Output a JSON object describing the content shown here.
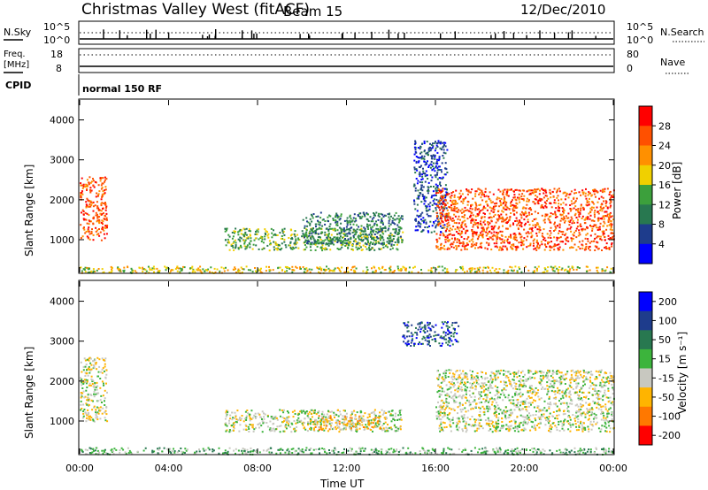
{
  "header": {
    "radar": "Christmas Valley West (fitACF)",
    "beam": "Beam 15",
    "date": "12/Dec/2010"
  },
  "status_panels": {
    "nsky_label": "N.Sky",
    "nsearch_label": "N.Search",
    "sky_ticks": [
      "10^5",
      "10^0"
    ],
    "freq_label": "Freq.",
    "freq_unit": "[MHz]",
    "freq_ticks": [
      "18",
      "8"
    ],
    "nave_label": "Nave",
    "nave_ticks": [
      "80",
      "0"
    ],
    "cpid_label": "CPID",
    "cpid_value": "normal 150 RF"
  },
  "colors": {
    "power_scale": [
      "#0000ff",
      "#1e3c8c",
      "#287850",
      "#3ca03c",
      "#f0d000",
      "#ff9000",
      "#ff5000",
      "#ff0000"
    ],
    "velocity_scale": [
      "#0000ff",
      "#1e3c8c",
      "#287850",
      "#3cb43c",
      "#c8c8c0",
      "#ffb400",
      "#ff7800",
      "#ff0000"
    ]
  },
  "chart_data": [
    {
      "type": "heatmap",
      "panel": "power",
      "ylabel": "Slant Range [km]",
      "y_ticks": [
        "1000",
        "2000",
        "3000",
        "4000"
      ],
      "ylim": [
        180,
        4500
      ],
      "colorbar_label": "Power [dB]",
      "colorbar_ticks": [
        "4",
        "8",
        "12",
        "16",
        "20",
        "24",
        "28"
      ],
      "scatter_regions": [
        {
          "t0": 0.0,
          "t1": 1.2,
          "r0": 1000,
          "r1": 2600,
          "level": 6
        },
        {
          "t0": 6.5,
          "t1": 14.5,
          "r0": 750,
          "r1": 1300,
          "level": 3
        },
        {
          "t0": 10.0,
          "t1": 14.5,
          "r0": 900,
          "r1": 1700,
          "level": 2
        },
        {
          "t0": 15.0,
          "t1": 16.5,
          "r0": 1200,
          "r1": 3500,
          "level": 1
        },
        {
          "t0": 16.0,
          "t1": 24.0,
          "r0": 750,
          "r1": 2300,
          "level": 6
        },
        {
          "t0": 0.0,
          "t1": 24.0,
          "r0": 180,
          "r1": 350,
          "level": 4
        }
      ]
    },
    {
      "type": "heatmap",
      "panel": "velocity",
      "ylabel": "Slant Range [km]",
      "y_ticks": [
        "1000",
        "2000",
        "3000",
        "4000"
      ],
      "ylim": [
        180,
        4500
      ],
      "colorbar_label": "Velocity [m s⁻¹]",
      "colorbar_ticks": [
        "200",
        "100",
        "50",
        "15",
        "-15",
        "-50",
        "-100",
        "-200"
      ],
      "scatter_regions": [
        {
          "t0": 0.0,
          "t1": 1.2,
          "r0": 1000,
          "r1": 2600,
          "level": 4
        },
        {
          "t0": 6.5,
          "t1": 14.5,
          "r0": 750,
          "r1": 1300,
          "level": 4
        },
        {
          "t0": 10.5,
          "t1": 13.5,
          "r0": 800,
          "r1": 1150,
          "level": 5
        },
        {
          "t0": 14.5,
          "t1": 17.0,
          "r0": 2900,
          "r1": 3500,
          "level": 1
        },
        {
          "t0": 16.0,
          "t1": 24.0,
          "r0": 750,
          "r1": 2300,
          "level": 4
        },
        {
          "t0": 0.0,
          "t1": 24.0,
          "r0": 180,
          "r1": 350,
          "level": 3
        }
      ]
    }
  ],
  "time_axis": {
    "ticks": [
      "00:00",
      "04:00",
      "08:00",
      "12:00",
      "16:00",
      "20:00",
      "00:00"
    ],
    "label": "Time UT"
  }
}
